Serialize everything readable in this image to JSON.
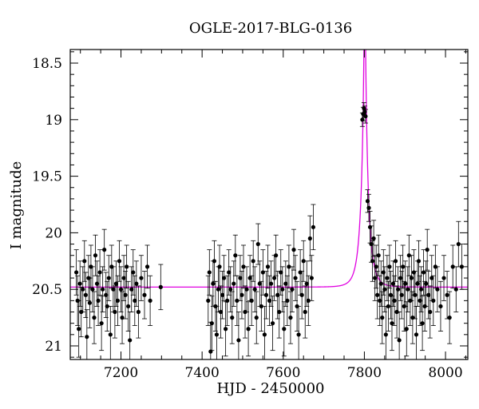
{
  "chart_data": {
    "type": "scatter",
    "title": "OGLE-2017-BLG-0136",
    "xlabel": "HJD - 2450000",
    "ylabel": "I magnitude",
    "xlim": [
      7075,
      8055
    ],
    "ylim": [
      21.12,
      18.38
    ],
    "y_inverted": true,
    "xticks": [
      7200,
      7400,
      7600,
      7800,
      8000
    ],
    "xtick_labels": [
      "7200",
      "7400",
      "7600",
      "7800",
      "8000"
    ],
    "yticks": [
      18.5,
      19,
      19.5,
      20,
      20.5,
      21
    ],
    "ytick_labels": [
      "18.5",
      "19",
      "19.5",
      "20",
      "20.5",
      "21"
    ],
    "grid": false,
    "series": [
      {
        "kind": "points_with_errorbars",
        "color": "#000000",
        "points": [
          {
            "x": 7090,
            "y": 20.35,
            "e": 0.2
          },
          {
            "x": 7093,
            "y": 20.6,
            "e": 0.22
          },
          {
            "x": 7096,
            "y": 20.85,
            "e": 0.25
          },
          {
            "x": 7099,
            "y": 20.45,
            "e": 0.2
          },
          {
            "x": 7102,
            "y": 20.7,
            "e": 0.22
          },
          {
            "x": 7106,
            "y": 20.5,
            "e": 0.2
          },
          {
            "x": 7110,
            "y": 20.25,
            "e": 0.18
          },
          {
            "x": 7113,
            "y": 20.55,
            "e": 0.2
          },
          {
            "x": 7116,
            "y": 20.92,
            "e": 0.24
          },
          {
            "x": 7120,
            "y": 20.4,
            "e": 0.2
          },
          {
            "x": 7123,
            "y": 20.62,
            "e": 0.22
          },
          {
            "x": 7126,
            "y": 20.3,
            "e": 0.19
          },
          {
            "x": 7130,
            "y": 20.5,
            "e": 0.2
          },
          {
            "x": 7134,
            "y": 20.75,
            "e": 0.23
          },
          {
            "x": 7137,
            "y": 20.2,
            "e": 0.18
          },
          {
            "x": 7141,
            "y": 20.45,
            "e": 0.2
          },
          {
            "x": 7144,
            "y": 20.6,
            "e": 0.22
          },
          {
            "x": 7148,
            "y": 20.35,
            "e": 0.2
          },
          {
            "x": 7152,
            "y": 20.8,
            "e": 0.24
          },
          {
            "x": 7155,
            "y": 20.5,
            "e": 0.2
          },
          {
            "x": 7159,
            "y": 20.15,
            "e": 0.18
          },
          {
            "x": 7163,
            "y": 20.55,
            "e": 0.2
          },
          {
            "x": 7166,
            "y": 20.65,
            "e": 0.22
          },
          {
            "x": 7170,
            "y": 20.4,
            "e": 0.2
          },
          {
            "x": 7174,
            "y": 20.9,
            "e": 0.25
          },
          {
            "x": 7177,
            "y": 20.3,
            "e": 0.19
          },
          {
            "x": 7181,
            "y": 20.5,
            "e": 0.2
          },
          {
            "x": 7185,
            "y": 20.7,
            "e": 0.23
          },
          {
            "x": 7188,
            "y": 20.45,
            "e": 0.2
          },
          {
            "x": 7192,
            "y": 20.6,
            "e": 0.22
          },
          {
            "x": 7196,
            "y": 20.25,
            "e": 0.18
          },
          {
            "x": 7200,
            "y": 20.5,
            "e": 0.2
          },
          {
            "x": 7203,
            "y": 20.75,
            "e": 0.23
          },
          {
            "x": 7207,
            "y": 20.4,
            "e": 0.2
          },
          {
            "x": 7211,
            "y": 20.55,
            "e": 0.21
          },
          {
            "x": 7214,
            "y": 20.3,
            "e": 0.19
          },
          {
            "x": 7218,
            "y": 20.65,
            "e": 0.22
          },
          {
            "x": 7222,
            "y": 20.95,
            "e": 0.25
          },
          {
            "x": 7226,
            "y": 20.5,
            "e": 0.2
          },
          {
            "x": 7230,
            "y": 20.35,
            "e": 0.2
          },
          {
            "x": 7234,
            "y": 20.6,
            "e": 0.22
          },
          {
            "x": 7238,
            "y": 20.45,
            "e": 0.2
          },
          {
            "x": 7243,
            "y": 20.7,
            "e": 0.23
          },
          {
            "x": 7250,
            "y": 20.4,
            "e": 0.2
          },
          {
            "x": 7258,
            "y": 20.55,
            "e": 0.21
          },
          {
            "x": 7265,
            "y": 20.3,
            "e": 0.19
          },
          {
            "x": 7272,
            "y": 20.6,
            "e": 0.22
          },
          {
            "x": 7298,
            "y": 20.48,
            "e": 0.2
          },
          {
            "x": 7415,
            "y": 20.6,
            "e": 0.22
          },
          {
            "x": 7418,
            "y": 20.35,
            "e": 0.2
          },
          {
            "x": 7421,
            "y": 21.05,
            "e": 0.26
          },
          {
            "x": 7424,
            "y": 20.8,
            "e": 0.24
          },
          {
            "x": 7427,
            "y": 20.45,
            "e": 0.2
          },
          {
            "x": 7430,
            "y": 20.25,
            "e": 0.18
          },
          {
            "x": 7433,
            "y": 20.65,
            "e": 0.22
          },
          {
            "x": 7436,
            "y": 20.9,
            "e": 0.25
          },
          {
            "x": 7440,
            "y": 20.5,
            "e": 0.2
          },
          {
            "x": 7443,
            "y": 20.3,
            "e": 0.19
          },
          {
            "x": 7446,
            "y": 20.7,
            "e": 0.23
          },
          {
            "x": 7450,
            "y": 20.55,
            "e": 0.21
          },
          {
            "x": 7454,
            "y": 20.4,
            "e": 0.2
          },
          {
            "x": 7458,
            "y": 20.85,
            "e": 0.24
          },
          {
            "x": 7462,
            "y": 20.6,
            "e": 0.22
          },
          {
            "x": 7466,
            "y": 20.35,
            "e": 0.2
          },
          {
            "x": 7470,
            "y": 20.5,
            "e": 0.2
          },
          {
            "x": 7474,
            "y": 20.75,
            "e": 0.23
          },
          {
            "x": 7478,
            "y": 20.45,
            "e": 0.2
          },
          {
            "x": 7482,
            "y": 20.2,
            "e": 0.18
          },
          {
            "x": 7486,
            "y": 20.6,
            "e": 0.22
          },
          {
            "x": 7490,
            "y": 20.95,
            "e": 0.25
          },
          {
            "x": 7494,
            "y": 20.4,
            "e": 0.2
          },
          {
            "x": 7498,
            "y": 20.55,
            "e": 0.21
          },
          {
            "x": 7502,
            "y": 20.3,
            "e": 0.19
          },
          {
            "x": 7506,
            "y": 20.7,
            "e": 0.23
          },
          {
            "x": 7510,
            "y": 20.5,
            "e": 0.2
          },
          {
            "x": 7514,
            "y": 20.85,
            "e": 0.24
          },
          {
            "x": 7518,
            "y": 20.4,
            "e": 0.2
          },
          {
            "x": 7522,
            "y": 20.6,
            "e": 0.22
          },
          {
            "x": 7526,
            "y": 20.25,
            "e": 0.18
          },
          {
            "x": 7530,
            "y": 20.5,
            "e": 0.2
          },
          {
            "x": 7534,
            "y": 20.75,
            "e": 0.23
          },
          {
            "x": 7538,
            "y": 20.1,
            "e": 0.18
          },
          {
            "x": 7542,
            "y": 20.45,
            "e": 0.2
          },
          {
            "x": 7546,
            "y": 20.65,
            "e": 0.22
          },
          {
            "x": 7550,
            "y": 20.35,
            "e": 0.2
          },
          {
            "x": 7554,
            "y": 20.9,
            "e": 0.25
          },
          {
            "x": 7558,
            "y": 20.55,
            "e": 0.21
          },
          {
            "x": 7562,
            "y": 20.3,
            "e": 0.19
          },
          {
            "x": 7566,
            "y": 20.6,
            "e": 0.22
          },
          {
            "x": 7570,
            "y": 20.45,
            "e": 0.2
          },
          {
            "x": 7574,
            "y": 20.8,
            "e": 0.24
          },
          {
            "x": 7578,
            "y": 20.4,
            "e": 0.2
          },
          {
            "x": 7582,
            "y": 20.2,
            "e": 0.18
          },
          {
            "x": 7586,
            "y": 20.55,
            "e": 0.21
          },
          {
            "x": 7590,
            "y": 20.7,
            "e": 0.23
          },
          {
            "x": 7594,
            "y": 20.35,
            "e": 0.2
          },
          {
            "x": 7598,
            "y": 20.5,
            "e": 0.2
          },
          {
            "x": 7602,
            "y": 20.85,
            "e": 0.24
          },
          {
            "x": 7606,
            "y": 20.45,
            "e": 0.2
          },
          {
            "x": 7610,
            "y": 20.6,
            "e": 0.22
          },
          {
            "x": 7614,
            "y": 20.3,
            "e": 0.19
          },
          {
            "x": 7618,
            "y": 20.75,
            "e": 0.23
          },
          {
            "x": 7622,
            "y": 20.5,
            "e": 0.2
          },
          {
            "x": 7626,
            "y": 20.15,
            "e": 0.18
          },
          {
            "x": 7630,
            "y": 20.4,
            "e": 0.2
          },
          {
            "x": 7634,
            "y": 20.65,
            "e": 0.22
          },
          {
            "x": 7638,
            "y": 20.9,
            "e": 0.25
          },
          {
            "x": 7642,
            "y": 20.35,
            "e": 0.2
          },
          {
            "x": 7646,
            "y": 20.55,
            "e": 0.21
          },
          {
            "x": 7650,
            "y": 20.25,
            "e": 0.18
          },
          {
            "x": 7654,
            "y": 20.7,
            "e": 0.23
          },
          {
            "x": 7658,
            "y": 20.45,
            "e": 0.2
          },
          {
            "x": 7662,
            "y": 20.6,
            "e": 0.22
          },
          {
            "x": 7666,
            "y": 20.05,
            "e": 0.2
          },
          {
            "x": 7670,
            "y": 20.4,
            "e": 0.2
          },
          {
            "x": 7674,
            "y": 19.95,
            "e": 0.2
          },
          {
            "x": 7795,
            "y": 19.0,
            "e": 0.06
          },
          {
            "x": 7797,
            "y": 18.95,
            "e": 0.06
          },
          {
            "x": 7799,
            "y": 18.9,
            "e": 0.05
          },
          {
            "x": 7801,
            "y": 18.93,
            "e": 0.05
          },
          {
            "x": 7803,
            "y": 18.97,
            "e": 0.06
          },
          {
            "x": 7808,
            "y": 19.72,
            "e": 0.1
          },
          {
            "x": 7811,
            "y": 19.78,
            "e": 0.12
          },
          {
            "x": 7814,
            "y": 19.95,
            "e": 0.14
          },
          {
            "x": 7817,
            "y": 20.1,
            "e": 0.16
          },
          {
            "x": 7820,
            "y": 20.25,
            "e": 0.18
          },
          {
            "x": 7823,
            "y": 20.05,
            "e": 0.16
          },
          {
            "x": 7826,
            "y": 20.4,
            "e": 0.2
          },
          {
            "x": 7829,
            "y": 20.3,
            "e": 0.19
          },
          {
            "x": 7832,
            "y": 20.55,
            "e": 0.21
          },
          {
            "x": 7835,
            "y": 20.2,
            "e": 0.18
          },
          {
            "x": 7838,
            "y": 20.6,
            "e": 0.22
          },
          {
            "x": 7841,
            "y": 20.45,
            "e": 0.2
          },
          {
            "x": 7844,
            "y": 20.75,
            "e": 0.23
          },
          {
            "x": 7847,
            "y": 20.35,
            "e": 0.2
          },
          {
            "x": 7850,
            "y": 20.5,
            "e": 0.2
          },
          {
            "x": 7853,
            "y": 20.9,
            "e": 0.25
          },
          {
            "x": 7856,
            "y": 20.4,
            "e": 0.2
          },
          {
            "x": 7859,
            "y": 20.65,
            "e": 0.22
          },
          {
            "x": 7862,
            "y": 20.3,
            "e": 0.19
          },
          {
            "x": 7865,
            "y": 20.55,
            "e": 0.21
          },
          {
            "x": 7868,
            "y": 20.8,
            "e": 0.24
          },
          {
            "x": 7871,
            "y": 20.45,
            "e": 0.2
          },
          {
            "x": 7874,
            "y": 20.6,
            "e": 0.22
          },
          {
            "x": 7877,
            "y": 20.25,
            "e": 0.18
          },
          {
            "x": 7880,
            "y": 20.7,
            "e": 0.23
          },
          {
            "x": 7883,
            "y": 20.5,
            "e": 0.2
          },
          {
            "x": 7886,
            "y": 20.95,
            "e": 0.25
          },
          {
            "x": 7889,
            "y": 20.4,
            "e": 0.2
          },
          {
            "x": 7892,
            "y": 20.55,
            "e": 0.21
          },
          {
            "x": 7895,
            "y": 20.3,
            "e": 0.19
          },
          {
            "x": 7898,
            "y": 20.65,
            "e": 0.22
          },
          {
            "x": 7901,
            "y": 20.45,
            "e": 0.2
          },
          {
            "x": 7904,
            "y": 20.85,
            "e": 0.24
          },
          {
            "x": 7907,
            "y": 20.5,
            "e": 0.2
          },
          {
            "x": 7910,
            "y": 20.2,
            "e": 0.18
          },
          {
            "x": 7913,
            "y": 20.6,
            "e": 0.22
          },
          {
            "x": 7916,
            "y": 20.4,
            "e": 0.2
          },
          {
            "x": 7919,
            "y": 20.75,
            "e": 0.23
          },
          {
            "x": 7922,
            "y": 20.35,
            "e": 0.2
          },
          {
            "x": 7925,
            "y": 20.55,
            "e": 0.21
          },
          {
            "x": 7928,
            "y": 20.9,
            "e": 0.25
          },
          {
            "x": 7931,
            "y": 20.45,
            "e": 0.2
          },
          {
            "x": 7934,
            "y": 20.25,
            "e": 0.18
          },
          {
            "x": 7937,
            "y": 20.6,
            "e": 0.22
          },
          {
            "x": 7940,
            "y": 20.5,
            "e": 0.2
          },
          {
            "x": 7943,
            "y": 20.8,
            "e": 0.24
          },
          {
            "x": 7946,
            "y": 20.35,
            "e": 0.2
          },
          {
            "x": 7949,
            "y": 20.65,
            "e": 0.22
          },
          {
            "x": 7952,
            "y": 20.45,
            "e": 0.2
          },
          {
            "x": 7955,
            "y": 20.15,
            "e": 0.18
          },
          {
            "x": 7958,
            "y": 20.55,
            "e": 0.21
          },
          {
            "x": 7962,
            "y": 20.7,
            "e": 0.23
          },
          {
            "x": 7966,
            "y": 20.4,
            "e": 0.2
          },
          {
            "x": 7970,
            "y": 20.6,
            "e": 0.22
          },
          {
            "x": 7975,
            "y": 20.3,
            "e": 0.19
          },
          {
            "x": 7980,
            "y": 20.5,
            "e": 0.2
          },
          {
            "x": 7988,
            "y": 20.65,
            "e": 0.22
          },
          {
            "x": 7996,
            "y": 20.4,
            "e": 0.2
          },
          {
            "x": 8004,
            "y": 20.55,
            "e": 0.21
          },
          {
            "x": 8010,
            "y": 20.75,
            "e": 0.23
          },
          {
            "x": 8018,
            "y": 20.3,
            "e": 0.19
          },
          {
            "x": 8026,
            "y": 20.5,
            "e": 0.2
          },
          {
            "x": 8032,
            "y": 20.1,
            "e": 0.2
          },
          {
            "x": 8040,
            "y": 20.3,
            "e": 0.2
          }
        ]
      },
      {
        "kind": "model_curve",
        "color": "#e000e0",
        "model": {
          "type": "paczynski",
          "baseline": 20.48,
          "t0": 7801,
          "u0": 0.09,
          "tE": 18
        }
      }
    ]
  }
}
